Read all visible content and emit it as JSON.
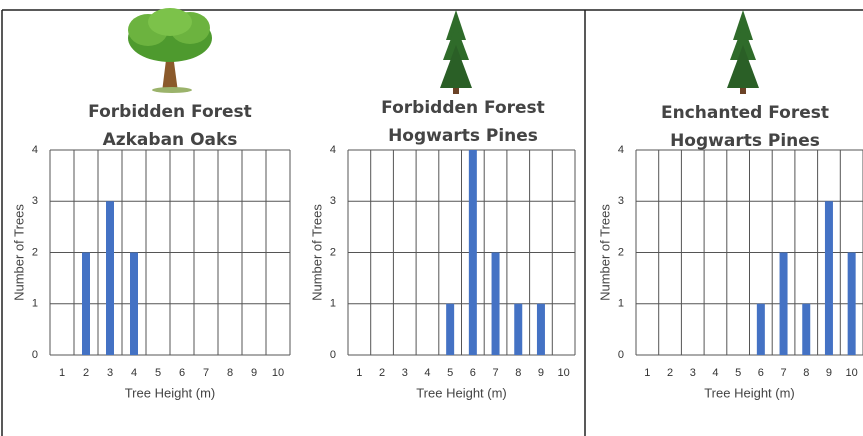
{
  "chart_data": [
    {
      "type": "bar",
      "title": [
        "Forbidden Forest",
        "Azkaban Oaks"
      ],
      "xlabel": "Tree Height (m)",
      "ylabel": "Number of Trees",
      "categories": [
        "1",
        "2",
        "3",
        "4",
        "5",
        "6",
        "7",
        "8",
        "9",
        "10"
      ],
      "values": [
        0,
        2,
        3,
        2,
        0,
        0,
        0,
        0,
        0,
        0
      ],
      "color": "#4472c4",
      "ylim": [
        0,
        4
      ],
      "yticks": [
        0,
        1,
        2,
        3,
        4
      ],
      "grid": true
    },
    {
      "type": "bar",
      "title": [
        "Forbidden Forest",
        "Hogwarts Pines"
      ],
      "xlabel": "Tree Height (m)",
      "ylabel": "Number of Trees",
      "categories": [
        "1",
        "2",
        "3",
        "4",
        "5",
        "6",
        "7",
        "8",
        "9",
        "10"
      ],
      "values": [
        0,
        0,
        0,
        0,
        1,
        4,
        2,
        1,
        1,
        0
      ],
      "color": "#4472c4",
      "ylim": [
        0,
        4
      ],
      "yticks": [
        0,
        1,
        2,
        3,
        4
      ],
      "grid": true
    },
    {
      "type": "bar",
      "title": [
        "Enchanted Forest",
        "Hogwarts Pines"
      ],
      "xlabel": "Tree Height (m)",
      "ylabel": "Number of Trees",
      "categories": [
        "1",
        "2",
        "3",
        "4",
        "5",
        "6",
        "7",
        "8",
        "9",
        "10"
      ],
      "values": [
        0,
        0,
        0,
        0,
        0,
        1,
        2,
        1,
        3,
        2
      ],
      "color": "#4472c4",
      "ylim": [
        0,
        4
      ],
      "yticks": [
        0,
        1,
        2,
        3,
        4
      ],
      "grid": true
    }
  ]
}
